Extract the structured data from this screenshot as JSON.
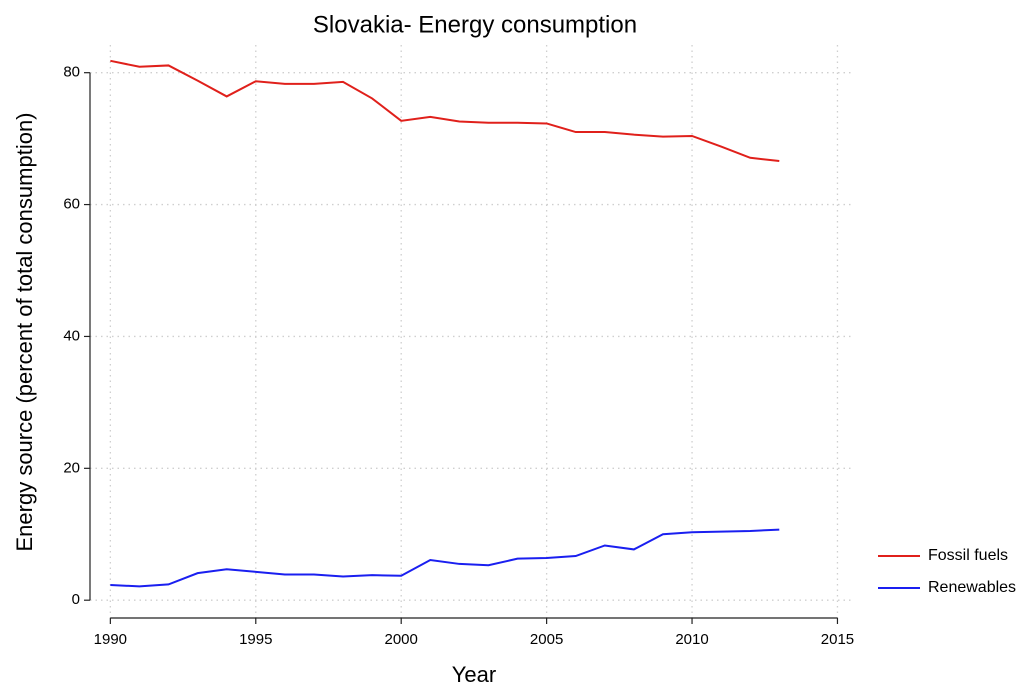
{
  "chart_data": {
    "type": "line",
    "title": "Slovakia- Energy consumption",
    "x_label": "Year",
    "y_label": "Energy source (percent of total consumption)",
    "x": [
      1990,
      1991,
      1992,
      1993,
      1994,
      1995,
      1996,
      1997,
      1998,
      1999,
      2000,
      2001,
      2002,
      2003,
      2004,
      2005,
      2006,
      2007,
      2008,
      2009,
      2010,
      2011,
      2012,
      2013
    ],
    "series": [
      {
        "name": "Fossil fuels",
        "color": "#e0201b",
        "values": [
          81.8,
          80.9,
          81.1,
          78.8,
          76.4,
          78.7,
          78.3,
          78.3,
          78.6,
          76.1,
          72.7,
          73.3,
          72.6,
          72.4,
          72.4,
          72.3,
          71.0,
          71.0,
          70.6,
          70.3,
          70.4,
          68.8,
          67.1,
          66.6
        ]
      },
      {
        "name": "Renewables",
        "color": "#1a1ff0",
        "values": [
          2.3,
          2.1,
          2.4,
          4.1,
          4.7,
          4.3,
          3.9,
          3.9,
          3.6,
          3.8,
          3.7,
          6.1,
          5.5,
          5.3,
          6.3,
          6.4,
          6.7,
          8.3,
          7.7,
          10.0,
          10.3,
          10.4,
          10.5,
          10.7
        ]
      }
    ],
    "xlim": [
      1989.3,
      2015.5
    ],
    "xticks": [
      1990,
      1995,
      2000,
      2005,
      2010,
      2015
    ],
    "ylim": [
      -2.7,
      84.2
    ],
    "yticks": [
      0,
      20,
      40,
      60,
      80
    ],
    "grid": true,
    "legend": "right"
  }
}
